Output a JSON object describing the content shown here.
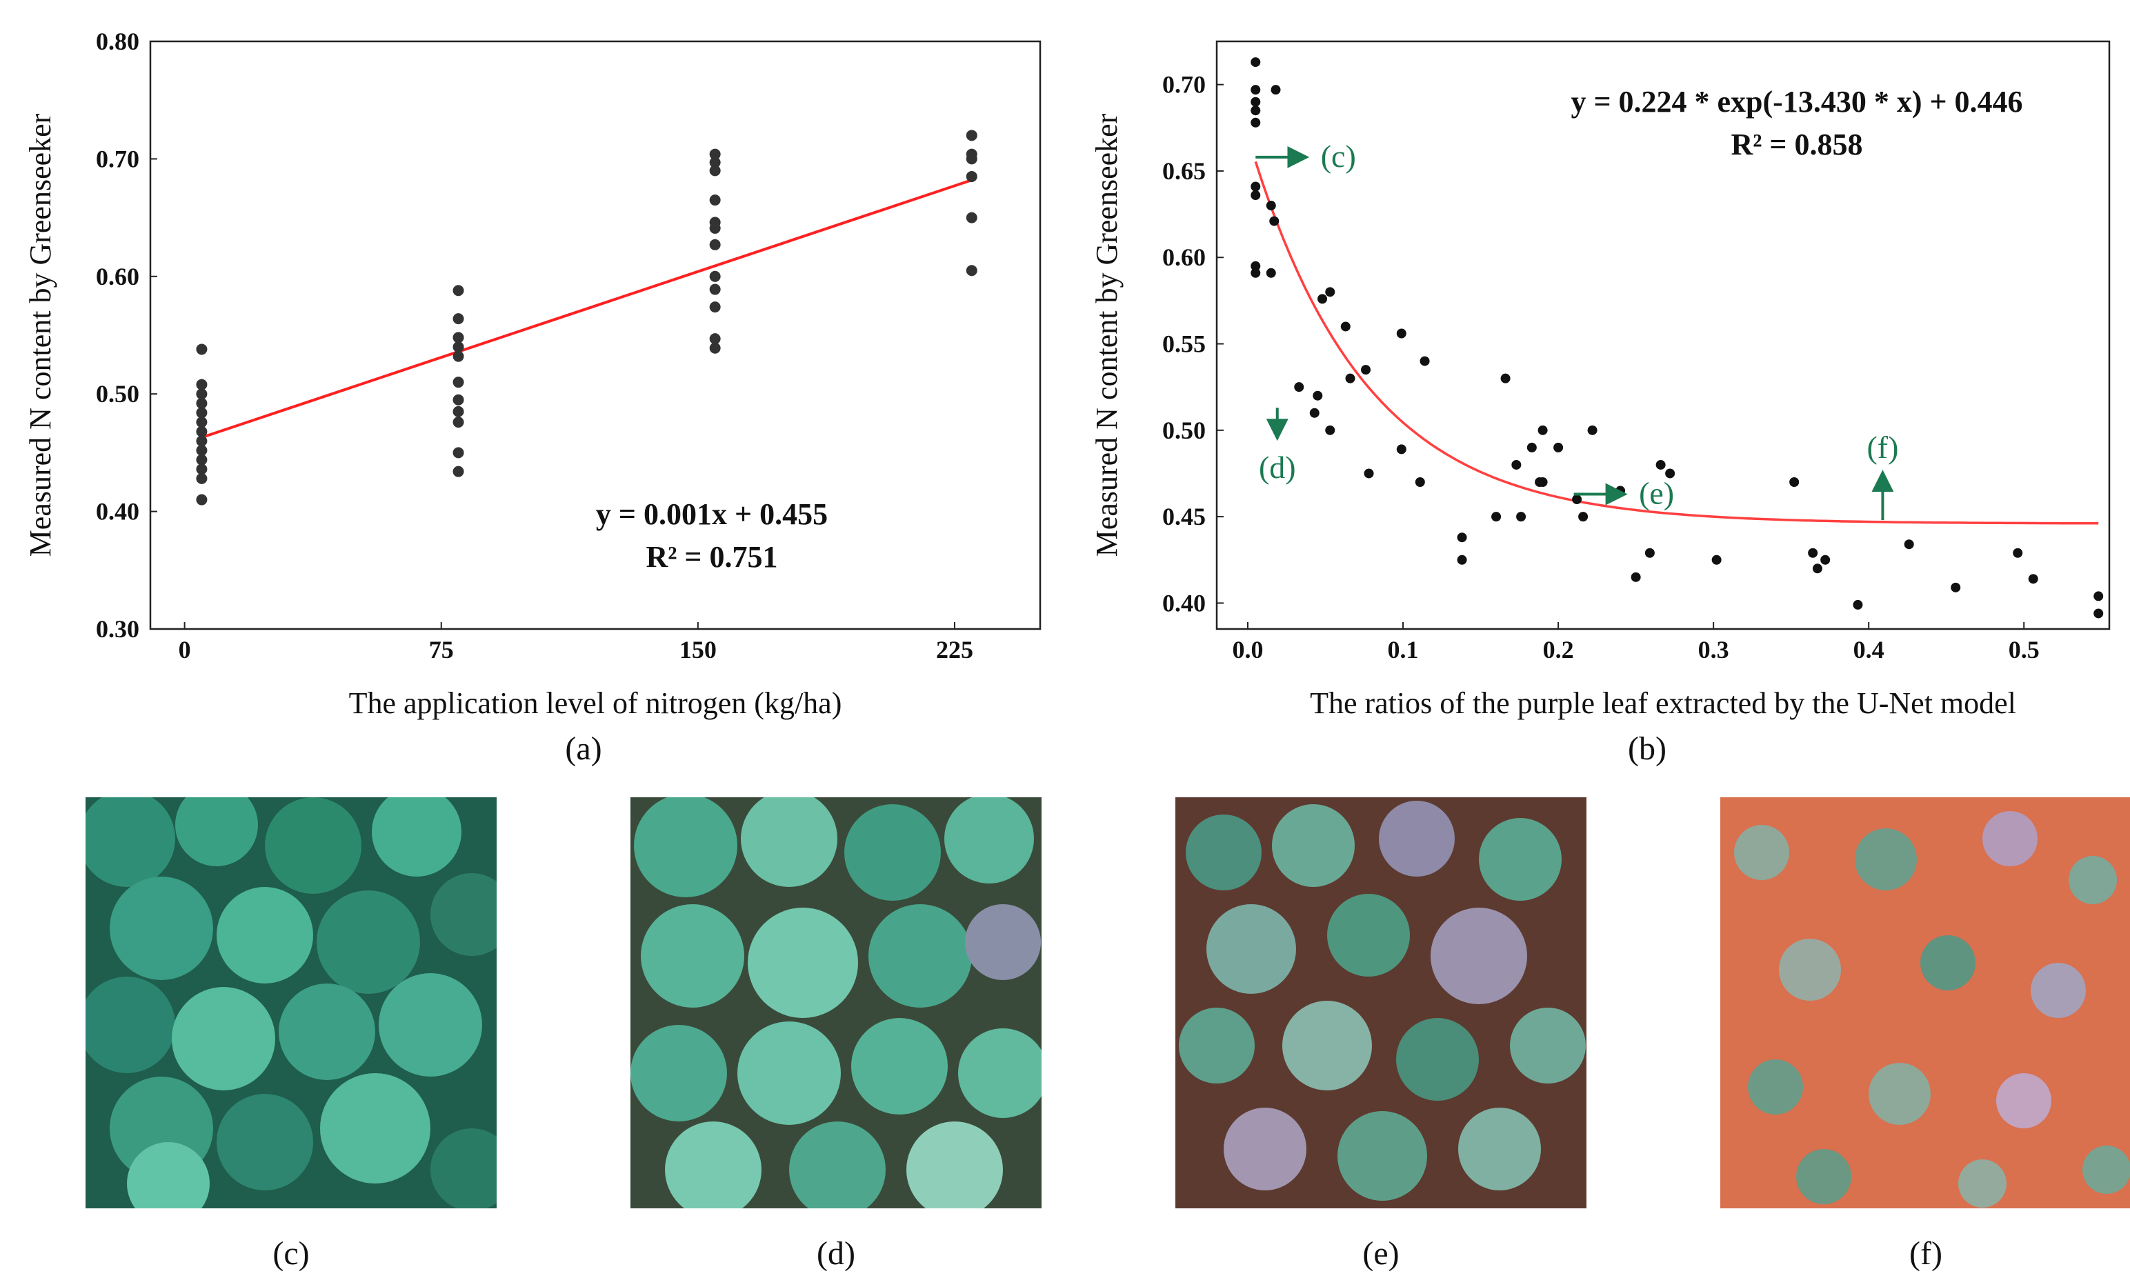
{
  "chart_data": [
    {
      "panel": "(a)",
      "type": "scatter",
      "title": "",
      "xlabel": "The application level of nitrogen (kg/ha)",
      "ylabel": "Measured N content by Greenseeker",
      "xlim": [
        -10,
        250
      ],
      "ylim": [
        0.3,
        0.8
      ],
      "xticks": [
        0,
        75,
        150,
        225
      ],
      "xtick_labels": [
        "0",
        "75",
        "150",
        "225"
      ],
      "yticks": [
        0.3,
        0.4,
        0.5,
        0.6,
        0.7,
        0.8
      ],
      "ytick_labels": [
        "0.30",
        "0.40",
        "0.50",
        "0.60",
        "0.70",
        "0.80"
      ],
      "grid": false,
      "series": [
        {
          "name": "samples",
          "color": "#333333",
          "points": [
            [
              5,
              0.538
            ],
            [
              5,
              0.508
            ],
            [
              5,
              0.5
            ],
            [
              5,
              0.492
            ],
            [
              5,
              0.484
            ],
            [
              5,
              0.476
            ],
            [
              5,
              0.468
            ],
            [
              5,
              0.46
            ],
            [
              5,
              0.452
            ],
            [
              5,
              0.444
            ],
            [
              5,
              0.436
            ],
            [
              5,
              0.428
            ],
            [
              5,
              0.41
            ],
            [
              80,
              0.588
            ],
            [
              80,
              0.564
            ],
            [
              80,
              0.548
            ],
            [
              80,
              0.54
            ],
            [
              80,
              0.532
            ],
            [
              80,
              0.51
            ],
            [
              80,
              0.495
            ],
            [
              80,
              0.485
            ],
            [
              80,
              0.476
            ],
            [
              80,
              0.45
            ],
            [
              80,
              0.434
            ],
            [
              155,
              0.704
            ],
            [
              155,
              0.697
            ],
            [
              155,
              0.69
            ],
            [
              155,
              0.665
            ],
            [
              155,
              0.646
            ],
            [
              155,
              0.641
            ],
            [
              155,
              0.627
            ],
            [
              155,
              0.6
            ],
            [
              155,
              0.589
            ],
            [
              155,
              0.574
            ],
            [
              155,
              0.547
            ],
            [
              155,
              0.539
            ],
            [
              230,
              0.72
            ],
            [
              230,
              0.704
            ],
            [
              230,
              0.7
            ],
            [
              230,
              0.685
            ],
            [
              230,
              0.65
            ],
            [
              230,
              0.605
            ]
          ]
        }
      ],
      "fit": {
        "type": "linear",
        "color": "#ff2020",
        "x_range": [
          5,
          230
        ],
        "y_start": 0.463,
        "y_end": 0.682,
        "equation": "y = 0.001x + 0.455",
        "r2": "R² = 0.751"
      }
    },
    {
      "panel": "(b)",
      "type": "scatter",
      "title": "",
      "xlabel": "The ratios of the purple leaf  extracted by the U-Net model",
      "ylabel": "Measured N content by Greenseeker",
      "xlim": [
        -0.02,
        0.555
      ],
      "ylim": [
        0.385,
        0.725
      ],
      "xticks": [
        0.0,
        0.1,
        0.2,
        0.3,
        0.4,
        0.5
      ],
      "xtick_labels": [
        "0.0",
        "0.1",
        "0.2",
        "0.3",
        "0.4",
        "0.5"
      ],
      "yticks": [
        0.4,
        0.45,
        0.5,
        0.55,
        0.6,
        0.65,
        0.7
      ],
      "ytick_labels": [
        "0.40",
        "0.45",
        "0.50",
        "0.55",
        "0.60",
        "0.65",
        "0.70"
      ],
      "grid": false,
      "series": [
        {
          "name": "samples",
          "color": "#111111",
          "points": [
            [
              0.005,
              0.713
            ],
            [
              0.005,
              0.697
            ],
            [
              0.005,
              0.69
            ],
            [
              0.005,
              0.685
            ],
            [
              0.005,
              0.678
            ],
            [
              0.005,
              0.641
            ],
            [
              0.005,
              0.636
            ],
            [
              0.005,
              0.595
            ],
            [
              0.005,
              0.591
            ],
            [
              0.018,
              0.697
            ],
            [
              0.015,
              0.63
            ],
            [
              0.017,
              0.621
            ],
            [
              0.015,
              0.591
            ],
            [
              0.033,
              0.525
            ],
            [
              0.043,
              0.51
            ],
            [
              0.045,
              0.52
            ],
            [
              0.048,
              0.576
            ],
            [
              0.053,
              0.58
            ],
            [
              0.053,
              0.5
            ],
            [
              0.063,
              0.56
            ],
            [
              0.066,
              0.53
            ],
            [
              0.076,
              0.535
            ],
            [
              0.078,
              0.475
            ],
            [
              0.099,
              0.556
            ],
            [
              0.099,
              0.489
            ],
            [
              0.111,
              0.47
            ],
            [
              0.114,
              0.54
            ],
            [
              0.138,
              0.438
            ],
            [
              0.138,
              0.425
            ],
            [
              0.16,
              0.45
            ],
            [
              0.166,
              0.53
            ],
            [
              0.173,
              0.48
            ],
            [
              0.176,
              0.45
            ],
            [
              0.183,
              0.49
            ],
            [
              0.188,
              0.47
            ],
            [
              0.19,
              0.5
            ],
            [
              0.19,
              0.47
            ],
            [
              0.2,
              0.49
            ],
            [
              0.212,
              0.46
            ],
            [
              0.216,
              0.45
            ],
            [
              0.222,
              0.5
            ],
            [
              0.24,
              0.465
            ],
            [
              0.25,
              0.415
            ],
            [
              0.259,
              0.429
            ],
            [
              0.266,
              0.48
            ],
            [
              0.272,
              0.475
            ],
            [
              0.302,
              0.425
            ],
            [
              0.352,
              0.47
            ],
            [
              0.364,
              0.429
            ],
            [
              0.367,
              0.42
            ],
            [
              0.372,
              0.425
            ],
            [
              0.393,
              0.399
            ],
            [
              0.426,
              0.434
            ],
            [
              0.456,
              0.409
            ],
            [
              0.496,
              0.429
            ],
            [
              0.506,
              0.414
            ],
            [
              0.548,
              0.404
            ],
            [
              0.548,
              0.394
            ]
          ]
        }
      ],
      "fit": {
        "type": "exponential",
        "color": "#ff4040",
        "a": 0.224,
        "b": -13.43,
        "c": 0.446,
        "x_range": [
          0.005,
          0.548
        ],
        "equation": "y = 0.224 * exp(-13.430 * x) + 0.446",
        "r2": "R² = 0.858"
      },
      "annotations": [
        {
          "label": "(c)",
          "direction": "right",
          "x": 0.005,
          "y": 0.658
        },
        {
          "label": "(d)",
          "direction": "down",
          "x": 0.019,
          "y": 0.513
        },
        {
          "label": "(e)",
          "direction": "right",
          "x": 0.21,
          "y": 0.463
        },
        {
          "label": "(f)",
          "direction": "up",
          "x": 0.409,
          "y": 0.448
        }
      ]
    }
  ],
  "annotation_color": "#1b7a52",
  "photos": [
    {
      "label": "(c)",
      "description_icon": "canola-field-photo-green"
    },
    {
      "label": "(d)",
      "description_icon": "canola-field-photo-green-purple"
    },
    {
      "label": "(e)",
      "description_icon": "canola-field-photo-soil-purple"
    },
    {
      "label": "(f)",
      "description_icon": "canola-field-photo-red-soil"
    }
  ],
  "panel_labels": {
    "a": "(a)",
    "b": "(b)"
  }
}
